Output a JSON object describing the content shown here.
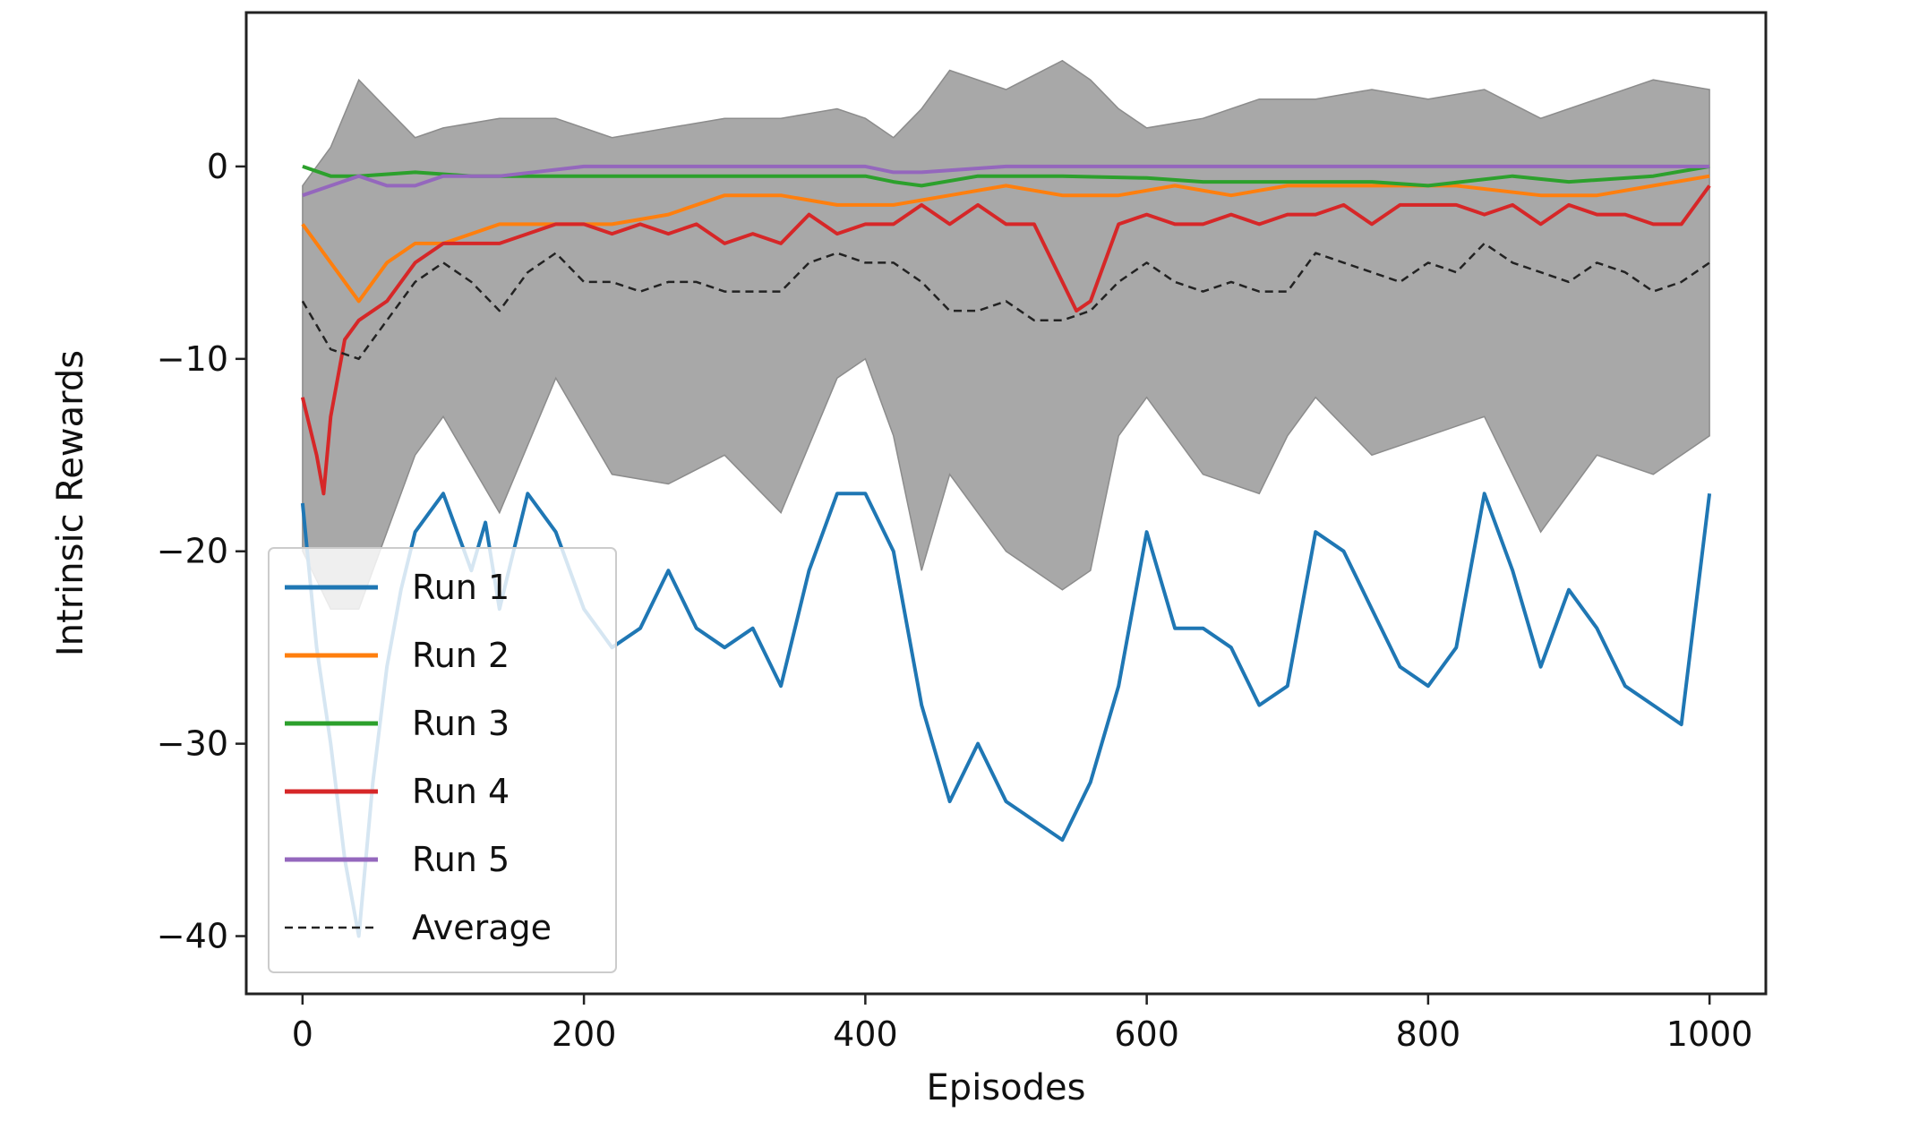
{
  "chart_data": {
    "type": "line",
    "title": "",
    "xlabel": "Episodes",
    "ylabel": "Intrinsic Rewards",
    "xlim": [
      -40,
      1040
    ],
    "ylim": [
      -43,
      8
    ],
    "xticks": [
      0,
      200,
      400,
      600,
      800,
      1000
    ],
    "xtick_labels": [
      "0",
      "200",
      "400",
      "600",
      "800",
      "1000"
    ],
    "yticks": [
      0,
      -10,
      -20,
      -30,
      -40
    ],
    "ytick_labels": [
      "0",
      "−10",
      "−20",
      "−30",
      "−40"
    ],
    "grid": false,
    "legend": {
      "location": "lower-left"
    },
    "band": {
      "color": "#a8a8a8",
      "x": [
        0,
        20,
        40,
        60,
        80,
        100,
        140,
        180,
        220,
        260,
        300,
        340,
        380,
        400,
        420,
        440,
        460,
        500,
        540,
        560,
        580,
        600,
        640,
        680,
        700,
        720,
        760,
        800,
        840,
        880,
        920,
        960,
        1000
      ],
      "upper": [
        -1,
        1,
        4.5,
        3,
        1.5,
        2,
        2.5,
        2.5,
        1.5,
        2,
        2.5,
        2.5,
        3,
        2.5,
        1.5,
        3,
        5,
        4,
        5.5,
        4.5,
        3,
        2,
        2.5,
        3.5,
        3.5,
        3.5,
        4,
        3.5,
        4,
        2.5,
        3.5,
        4.5,
        4
      ],
      "lower": [
        -20,
        -23,
        -23,
        -19,
        -15,
        -13,
        -18,
        -11,
        -16,
        -16.5,
        -15,
        -18,
        -11,
        -10,
        -14,
        -21,
        -16,
        -20,
        -22,
        -21,
        -14,
        -12,
        -16,
        -17,
        -14,
        -12,
        -15,
        -14,
        -13,
        -19,
        -15,
        -16,
        -14
      ]
    },
    "series": [
      {
        "name": "Run 1",
        "color": "#1f77b4",
        "x": [
          0,
          10,
          20,
          30,
          40,
          50,
          60,
          70,
          80,
          90,
          100,
          110,
          120,
          130,
          140,
          150,
          160,
          170,
          180,
          190,
          200,
          220,
          240,
          260,
          280,
          300,
          320,
          340,
          360,
          380,
          400,
          420,
          440,
          460,
          480,
          500,
          520,
          540,
          560,
          580,
          600,
          620,
          640,
          660,
          680,
          700,
          720,
          740,
          760,
          780,
          800,
          820,
          840,
          860,
          880,
          900,
          920,
          940,
          960,
          980,
          1000
        ],
        "values": [
          -17.5,
          -25,
          -30,
          -36,
          -40,
          -32,
          -26,
          -22,
          -19,
          -18,
          -17,
          -19,
          -21,
          -18.5,
          -23,
          -20,
          -17,
          -18,
          -19,
          -21,
          -23,
          -25,
          -24,
          -21,
          -24,
          -25,
          -24,
          -27,
          -21,
          -17,
          -17,
          -20,
          -28,
          -33,
          -30,
          -33,
          -34,
          -35,
          -32,
          -27,
          -19,
          -24,
          -24,
          -25,
          -28,
          -27,
          -19,
          -20,
          -23,
          -26,
          -27,
          -25,
          -17,
          -21,
          -26,
          -22,
          -24,
          -27,
          -28,
          -29,
          -17
        ]
      },
      {
        "name": "Run 2",
        "color": "#ff7f0e",
        "x": [
          0,
          20,
          40,
          60,
          80,
          100,
          140,
          180,
          220,
          260,
          300,
          340,
          380,
          420,
          460,
          500,
          540,
          580,
          620,
          660,
          700,
          760,
          820,
          880,
          920,
          960,
          1000
        ],
        "values": [
          -3,
          -5,
          -7,
          -5,
          -4,
          -4,
          -3,
          -3,
          -3,
          -2.5,
          -1.5,
          -1.5,
          -2,
          -2,
          -1.5,
          -1,
          -1.5,
          -1.5,
          -1,
          -1.5,
          -1,
          -1,
          -1,
          -1.5,
          -1.5,
          -1,
          -0.5
        ]
      },
      {
        "name": "Run 3",
        "color": "#2ca02c",
        "x": [
          0,
          20,
          40,
          80,
          120,
          200,
          300,
          400,
          420,
          440,
          480,
          540,
          600,
          640,
          700,
          760,
          800,
          860,
          900,
          960,
          1000
        ],
        "values": [
          0,
          -0.5,
          -0.5,
          -0.3,
          -0.5,
          -0.5,
          -0.5,
          -0.5,
          -0.8,
          -1,
          -0.5,
          -0.5,
          -0.6,
          -0.8,
          -0.8,
          -0.8,
          -1,
          -0.5,
          -0.8,
          -0.5,
          0
        ]
      },
      {
        "name": "Run 4",
        "color": "#d62728",
        "x": [
          0,
          10,
          15,
          20,
          30,
          40,
          60,
          80,
          100,
          120,
          140,
          160,
          180,
          200,
          220,
          240,
          260,
          280,
          300,
          320,
          340,
          360,
          380,
          400,
          420,
          440,
          460,
          480,
          500,
          520,
          540,
          550,
          560,
          580,
          600,
          620,
          640,
          660,
          680,
          700,
          720,
          740,
          760,
          780,
          800,
          820,
          840,
          860,
          880,
          900,
          920,
          940,
          960,
          980,
          1000
        ],
        "values": [
          -12,
          -15,
          -17,
          -13,
          -9,
          -8,
          -7,
          -5,
          -4,
          -4,
          -4,
          -3.5,
          -3,
          -3,
          -3.5,
          -3,
          -3.5,
          -3,
          -4,
          -3.5,
          -4,
          -2.5,
          -3.5,
          -3,
          -3,
          -2,
          -3,
          -2,
          -3,
          -3,
          -6,
          -7.5,
          -7,
          -3,
          -2.5,
          -3,
          -3,
          -2.5,
          -3,
          -2.5,
          -2.5,
          -2,
          -3,
          -2,
          -2,
          -2,
          -2.5,
          -2,
          -3,
          -2,
          -2.5,
          -2.5,
          -3,
          -3,
          -1
        ]
      },
      {
        "name": "Run 5",
        "color": "#9467bd",
        "x": [
          0,
          20,
          40,
          60,
          80,
          100,
          140,
          200,
          300,
          400,
          420,
          440,
          500,
          600,
          700,
          800,
          900,
          920,
          1000
        ],
        "values": [
          -1.5,
          -1,
          -0.5,
          -1,
          -1,
          -0.5,
          -0.5,
          0,
          0,
          0,
          -0.3,
          -0.3,
          0,
          0,
          0,
          0,
          0,
          0,
          0
        ]
      },
      {
        "name": "Average",
        "color": "#222222",
        "dashed": true,
        "x": [
          0,
          20,
          40,
          60,
          80,
          100,
          120,
          140,
          160,
          180,
          200,
          220,
          240,
          260,
          280,
          300,
          320,
          340,
          360,
          380,
          400,
          420,
          440,
          460,
          480,
          500,
          520,
          540,
          560,
          580,
          600,
          620,
          640,
          660,
          680,
          700,
          720,
          740,
          760,
          780,
          800,
          820,
          840,
          860,
          880,
          900,
          920,
          940,
          960,
          980,
          1000
        ],
        "values": [
          -7,
          -9.5,
          -10,
          -8,
          -6,
          -5,
          -6,
          -7.5,
          -5.5,
          -4.5,
          -6,
          -6,
          -6.5,
          -6,
          -6,
          -6.5,
          -6.5,
          -6.5,
          -5,
          -4.5,
          -5,
          -5,
          -6,
          -7.5,
          -7.5,
          -7,
          -8,
          -8,
          -7.5,
          -6,
          -5,
          -6,
          -6.5,
          -6,
          -6.5,
          -6.5,
          -4.5,
          -5,
          -5.5,
          -6,
          -5,
          -5.5,
          -4,
          -5,
          -5.5,
          -6,
          -5,
          -5.5,
          -6.5,
          -6,
          -5
        ]
      }
    ]
  }
}
